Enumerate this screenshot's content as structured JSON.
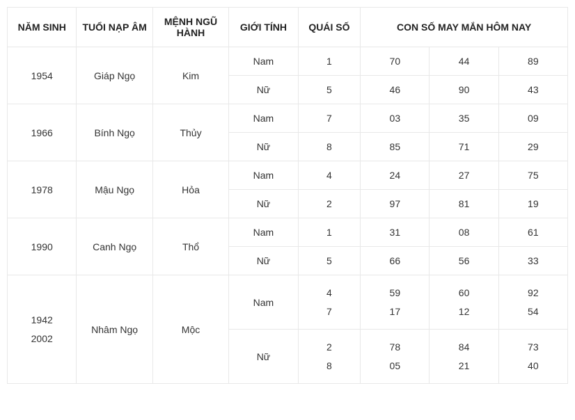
{
  "headers": {
    "col1": "NĂM SINH",
    "col2": "TUỔI NẠP ÂM",
    "col3": "MỆNH NGŨ HÀNH",
    "col4": "GIỚI TÍNH",
    "col5": "QUÁI SỐ",
    "col6": "CON SỐ MAY MẮN HÔM NAY"
  },
  "rows": [
    {
      "year": "1954",
      "age": "Giáp Ngọ",
      "element": "Kim",
      "genders": [
        {
          "label": "Nam",
          "quai": "1",
          "n1": "70",
          "n2": "44",
          "n3": "89"
        },
        {
          "label": "Nữ",
          "quai": "5",
          "n1": "46",
          "n2": "90",
          "n3": "43"
        }
      ]
    },
    {
      "year": "1966",
      "age": "Bính Ngọ",
      "element": "Thủy",
      "genders": [
        {
          "label": "Nam",
          "quai": "7",
          "n1": "03",
          "n2": "35",
          "n3": "09"
        },
        {
          "label": "Nữ",
          "quai": "8",
          "n1": "85",
          "n2": "71",
          "n3": "29"
        }
      ]
    },
    {
      "year": "1978",
      "age": "Mậu Ngọ",
      "element": "Hỏa",
      "genders": [
        {
          "label": "Nam",
          "quai": "4",
          "n1": "24",
          "n2": "27",
          "n3": "75"
        },
        {
          "label": "Nữ",
          "quai": "2",
          "n1": "97",
          "n2": "81",
          "n3": "19"
        }
      ]
    },
    {
      "year": "1990",
      "age": "Canh Ngọ",
      "element": "Thổ",
      "genders": [
        {
          "label": "Nam",
          "quai": "1",
          "n1": "31",
          "n2": "08",
          "n3": "61"
        },
        {
          "label": "Nữ",
          "quai": "5",
          "n1": "66",
          "n2": "56",
          "n3": "33"
        }
      ]
    }
  ],
  "lastGroup": {
    "year_l1": "1942",
    "year_l2": "2002",
    "age": "Nhâm Ngọ",
    "element": "Mộc",
    "male": {
      "label": "Nam",
      "quai_l1": "4",
      "quai_l2": "7",
      "n1_l1": "59",
      "n1_l2": "17",
      "n2_l1": "60",
      "n2_l2": "12",
      "n3_l1": "92",
      "n3_l2": "54"
    },
    "female": {
      "label": "Nữ",
      "quai_l1": "2",
      "quai_l2": "8",
      "n1_l1": "78",
      "n1_l2": "05",
      "n2_l1": "84",
      "n2_l2": "21",
      "n3_l1": "73",
      "n3_l2": "40"
    }
  },
  "colWidths": [
    "100",
    "110",
    "110",
    "100",
    "90",
    "100",
    "100",
    "100"
  ]
}
